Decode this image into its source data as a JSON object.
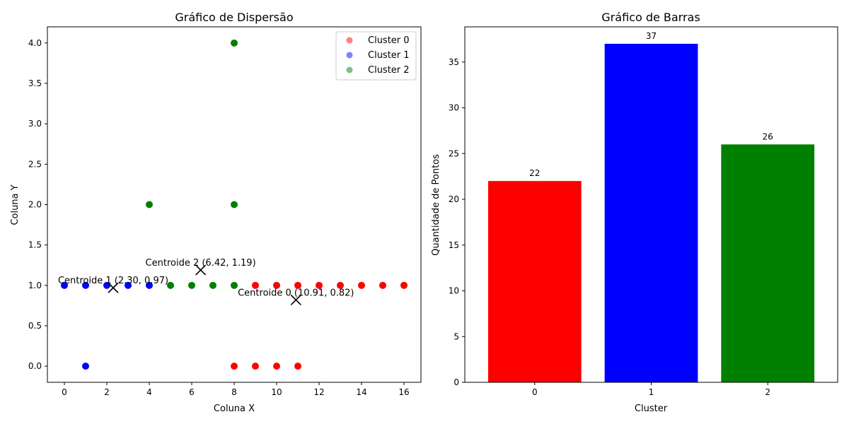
{
  "chart_data": [
    {
      "type": "scatter",
      "title": "Gráfico de Dispersão",
      "xlabel": "Coluna X",
      "ylabel": "Coluna Y",
      "xlim": [
        -0.8,
        16.8
      ],
      "ylim": [
        -0.2,
        4.2
      ],
      "xticks": [
        0,
        2,
        4,
        6,
        8,
        10,
        12,
        14,
        16
      ],
      "xtick_labels": [
        "0",
        "2",
        "4",
        "6",
        "8",
        "10",
        "12",
        "14",
        "16"
      ],
      "yticks": [
        0.0,
        0.5,
        1.0,
        1.5,
        2.0,
        2.5,
        3.0,
        3.5,
        4.0
      ],
      "ytick_labels": [
        "0.0",
        "0.5",
        "1.0",
        "1.5",
        "2.0",
        "2.5",
        "3.0",
        "3.5",
        "4.0"
      ],
      "legend": "top-right",
      "series": [
        {
          "name": "Cluster 0",
          "color": "#ff0000",
          "points": [
            [
              8,
              0
            ],
            [
              9,
              0
            ],
            [
              10,
              0
            ],
            [
              11,
              0
            ],
            [
              9,
              1
            ],
            [
              10,
              1
            ],
            [
              11,
              1
            ],
            [
              12,
              1
            ],
            [
              13,
              1
            ],
            [
              14,
              1
            ],
            [
              15,
              1
            ],
            [
              16,
              1
            ]
          ]
        },
        {
          "name": "Cluster 1",
          "color": "#0000ff",
          "points": [
            [
              0,
              1
            ],
            [
              1,
              1
            ],
            [
              2,
              1
            ],
            [
              3,
              1
            ],
            [
              4,
              1
            ],
            [
              1,
              0
            ]
          ]
        },
        {
          "name": "Cluster 2",
          "color": "#008000",
          "points": [
            [
              5,
              1
            ],
            [
              6,
              1
            ],
            [
              7,
              1
            ],
            [
              8,
              1
            ],
            [
              4,
              2
            ],
            [
              8,
              2
            ],
            [
              8,
              4
            ]
          ]
        }
      ],
      "centroids": [
        {
          "label": "Centroide 0 (10.91, 0.82)",
          "x": 10.91,
          "y": 0.82
        },
        {
          "label": "Centroide 1 (2.30, 0.97)",
          "x": 2.3,
          "y": 0.97
        },
        {
          "label": "Centroide 2 (6.42, 1.19)",
          "x": 6.42,
          "y": 1.19
        }
      ]
    },
    {
      "type": "bar",
      "title": "Gráfico de Barras",
      "xlabel": "Cluster",
      "ylabel": "Quantidade de Pontos",
      "categories": [
        "0",
        "1",
        "2"
      ],
      "values": [
        22,
        37,
        26
      ],
      "value_labels": [
        "22",
        "37",
        "26"
      ],
      "colors": [
        "#ff0000",
        "#0000ff",
        "#008000"
      ],
      "ylim": [
        0,
        38.85
      ],
      "yticks": [
        0,
        5,
        10,
        15,
        20,
        25,
        30,
        35
      ],
      "ytick_labels": [
        "0",
        "5",
        "10",
        "15",
        "20",
        "25",
        "30",
        "35"
      ]
    }
  ]
}
